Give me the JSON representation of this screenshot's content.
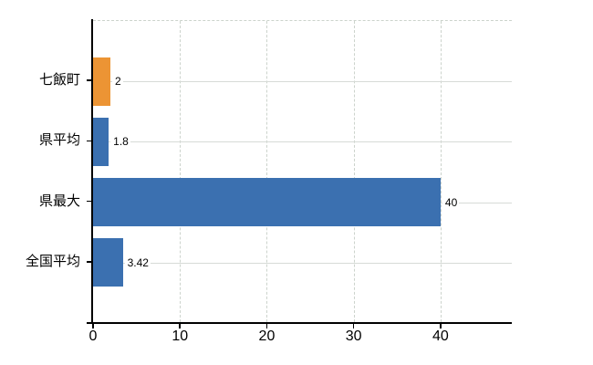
{
  "chart_data": {
    "type": "bar",
    "orientation": "horizontal",
    "title": "",
    "xlabel": "",
    "ylabel": "",
    "categories": [
      "七飯町",
      "県平均",
      "県最大",
      "全国平均"
    ],
    "values": [
      2,
      1.8,
      40,
      3.42
    ],
    "value_labels": [
      "2",
      "1.8",
      "40",
      "3.42"
    ],
    "bar_colors": [
      "#ec9434",
      "#3b70b0",
      "#3b70b0",
      "#3b70b0"
    ],
    "x_ticks": [
      0,
      10,
      20,
      30,
      40
    ],
    "x_tick_labels": [
      "0",
      "10",
      "20",
      "30",
      "40"
    ],
    "xlim": [
      0,
      48.2
    ],
    "grid": true,
    "legend_position": "none",
    "colors": {
      "accent_orange": "#ec9434",
      "accent_blue": "#3b70b0",
      "grid": "#d7dbd7",
      "axis": "#000000",
      "text": "#000000",
      "background": "#ffffff"
    }
  }
}
